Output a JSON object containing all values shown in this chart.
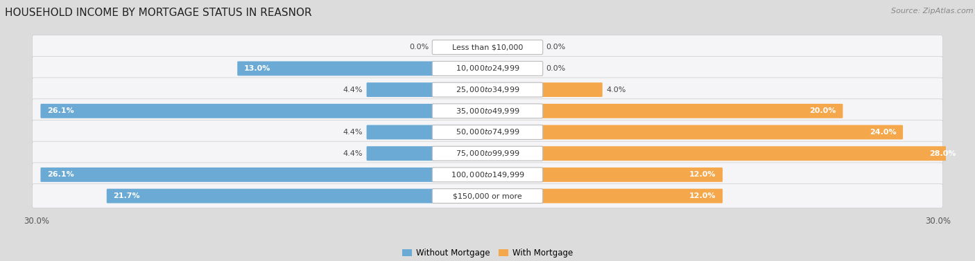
{
  "title": "HOUSEHOLD INCOME BY MORTGAGE STATUS IN REASNOR",
  "source": "Source: ZipAtlas.com",
  "categories": [
    "Less than $10,000",
    "$10,000 to $24,999",
    "$25,000 to $34,999",
    "$35,000 to $49,999",
    "$50,000 to $74,999",
    "$75,000 to $99,999",
    "$100,000 to $149,999",
    "$150,000 or more"
  ],
  "without_mortgage": [
    0.0,
    13.0,
    4.4,
    26.1,
    4.4,
    4.4,
    26.1,
    21.7
  ],
  "with_mortgage": [
    0.0,
    0.0,
    4.0,
    20.0,
    24.0,
    28.0,
    12.0,
    12.0
  ],
  "color_without": "#6aaad4",
  "color_with": "#f5a74b",
  "xlim": 30.0,
  "background_color": "#dcdcdc",
  "row_bg_color": "#f5f5f7",
  "row_border_color": "#cccccc",
  "title_fontsize": 11,
  "label_fontsize": 8,
  "pct_fontsize": 8,
  "tick_fontsize": 8.5,
  "source_fontsize": 8,
  "legend_fontsize": 8.5
}
